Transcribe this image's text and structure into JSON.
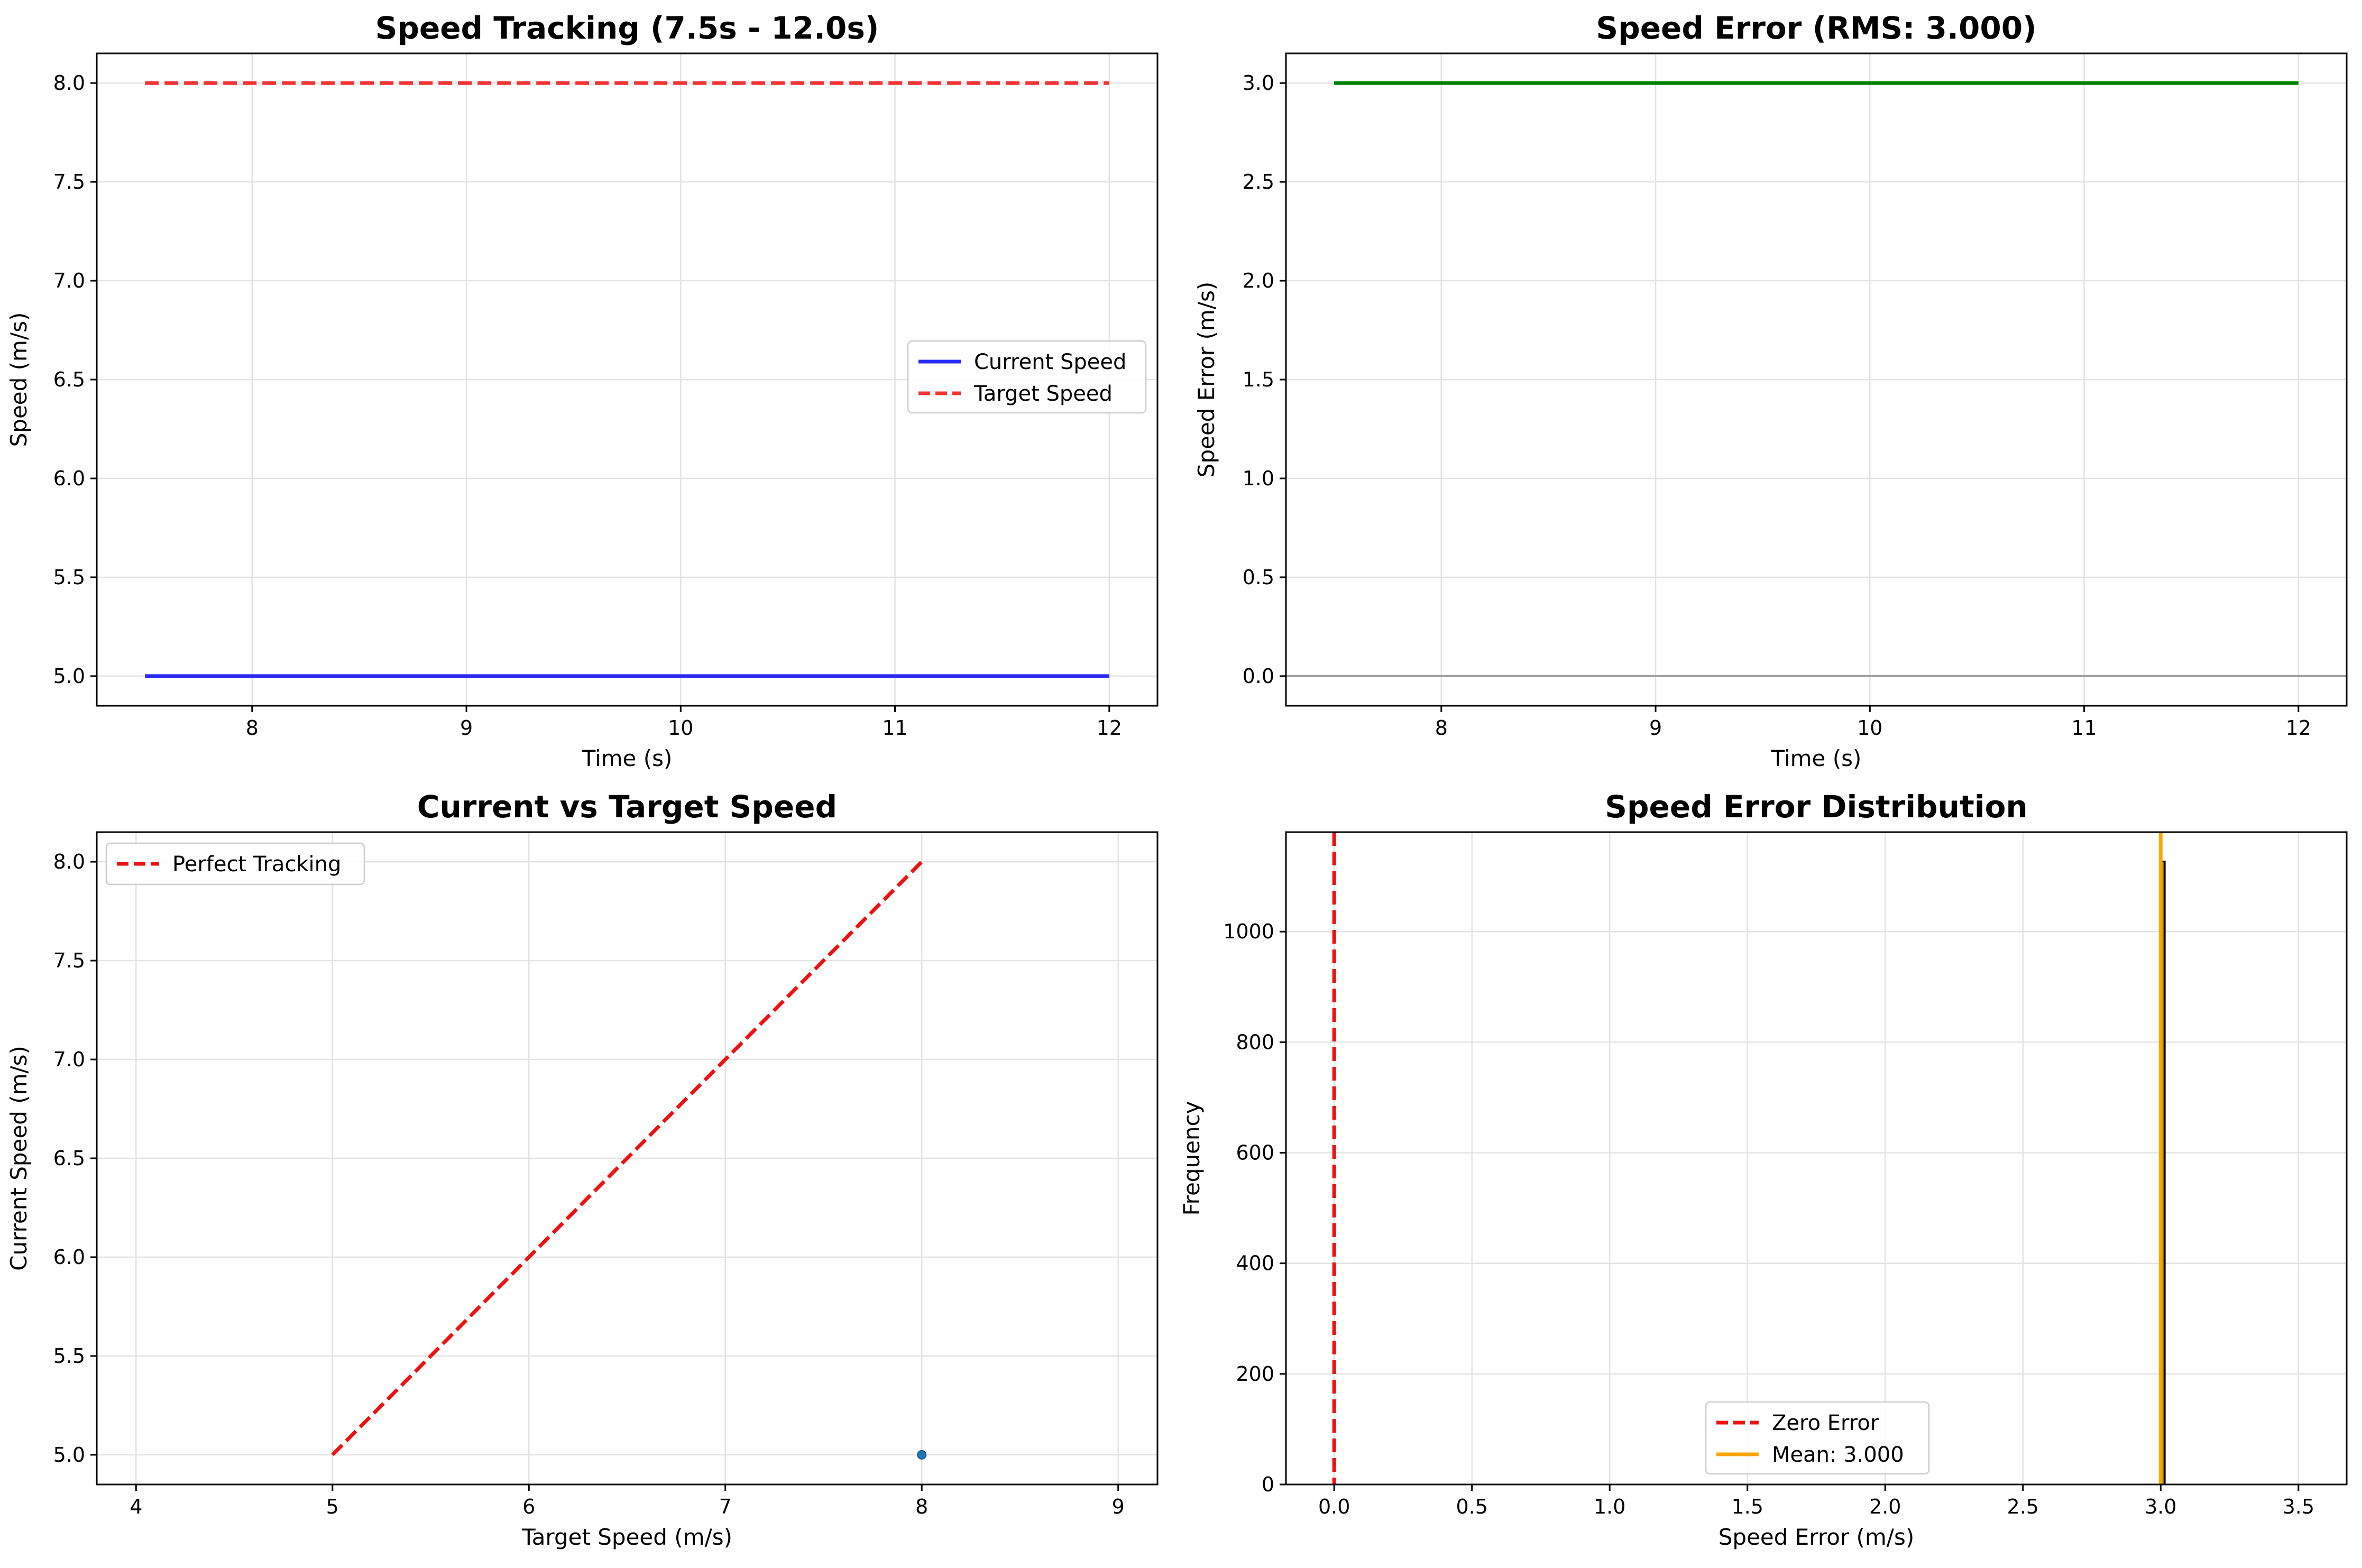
{
  "colors": {
    "current": "#2a2af5",
    "target": "#f53333",
    "error": "#008000",
    "zero_line": "#a0a0a0",
    "perfect": "#ee1111",
    "scatter": "#1f77b4",
    "hist_bar": "#808000",
    "mean_line": "#ffa500",
    "grid": "#e3e3e3"
  },
  "chart_data": [
    {
      "id": "speed-tracking",
      "type": "line",
      "title": "Speed Tracking (7.5s - 12.0s)",
      "xlabel": "Time (s)",
      "ylabel": "Speed (m/s)",
      "xlim": [
        7.275,
        12.225
      ],
      "ylim": [
        4.85,
        8.15
      ],
      "xticks": [
        8,
        9,
        10,
        11,
        12
      ],
      "xtick_labels": [
        "8",
        "9",
        "10",
        "11",
        "12"
      ],
      "yticks": [
        5.0,
        5.5,
        6.0,
        6.5,
        7.0,
        7.5,
        8.0
      ],
      "ytick_labels": [
        "5.0",
        "5.5",
        "6.0",
        "6.5",
        "7.0",
        "7.5",
        "8.0"
      ],
      "grid": true,
      "legend": "center-right",
      "series": [
        {
          "name": "Current Speed",
          "x": [
            7.5,
            12.0
          ],
          "y": [
            5.0,
            5.0
          ],
          "style": "solid",
          "color_key": "current"
        },
        {
          "name": "Target Speed",
          "x": [
            7.5,
            12.0
          ],
          "y": [
            8.0,
            8.0
          ],
          "style": "dashed",
          "color_key": "target"
        }
      ]
    },
    {
      "id": "speed-error",
      "type": "line",
      "title": "Speed Error (RMS: 3.000)",
      "xlabel": "Time (s)",
      "ylabel": "Speed Error (m/s)",
      "xlim": [
        7.275,
        12.225
      ],
      "ylim": [
        -0.15,
        3.15
      ],
      "xticks": [
        8,
        9,
        10,
        11,
        12
      ],
      "xtick_labels": [
        "8",
        "9",
        "10",
        "11",
        "12"
      ],
      "yticks": [
        0.0,
        0.5,
        1.0,
        1.5,
        2.0,
        2.5,
        3.0
      ],
      "ytick_labels": [
        "0.0",
        "0.5",
        "1.0",
        "1.5",
        "2.0",
        "2.5",
        "3.0"
      ],
      "grid": true,
      "hline": {
        "y": 0.0,
        "color_key": "zero_line"
      },
      "series": [
        {
          "x": [
            7.5,
            12.0
          ],
          "y": [
            3.0,
            3.0
          ],
          "style": "solid",
          "color_key": "error"
        }
      ]
    },
    {
      "id": "current-vs-target",
      "type": "scatter",
      "title": "Current vs Target Speed",
      "xlabel": "Target Speed (m/s)",
      "ylabel": "Current Speed (m/s)",
      "xlim": [
        3.8,
        9.2
      ],
      "ylim": [
        4.85,
        8.15
      ],
      "xticks": [
        4,
        5,
        6,
        7,
        8,
        9
      ],
      "xtick_labels": [
        "4",
        "5",
        "6",
        "7",
        "8",
        "9"
      ],
      "yticks": [
        5.0,
        5.5,
        6.0,
        6.5,
        7.0,
        7.5,
        8.0
      ],
      "ytick_labels": [
        "5.0",
        "5.5",
        "6.0",
        "6.5",
        "7.0",
        "7.5",
        "8.0"
      ],
      "grid": true,
      "legend": "top-left",
      "points": [
        {
          "x": 8.0,
          "y": 5.0
        }
      ],
      "series": [
        {
          "name": "Perfect Tracking",
          "x": [
            5.0,
            8.0
          ],
          "y": [
            5.0,
            8.0
          ],
          "style": "dashed",
          "color_key": "perfect"
        }
      ]
    },
    {
      "id": "error-distribution",
      "type": "bar",
      "title": "Speed Error Distribution",
      "xlabel": "Speed Error (m/s)",
      "ylabel": "Frequency",
      "xlim": [
        -0.175,
        3.675
      ],
      "ylim": [
        0,
        1180
      ],
      "xticks": [
        0.0,
        0.5,
        1.0,
        1.5,
        2.0,
        2.5,
        3.0,
        3.5
      ],
      "xtick_labels": [
        "0.0",
        "0.5",
        "1.0",
        "1.5",
        "2.0",
        "2.5",
        "3.0",
        "3.5"
      ],
      "yticks": [
        0,
        200,
        400,
        600,
        800,
        1000
      ],
      "ytick_labels": [
        "0",
        "200",
        "400",
        "600",
        "800",
        "1000"
      ],
      "grid": true,
      "legend": "bottom-center",
      "bins": [
        {
          "x0": 3.0,
          "x1": 3.015,
          "value": 1127
        }
      ],
      "vlines": [
        {
          "name": "Zero Error",
          "x": 0.0,
          "style": "dashed",
          "color_key": "perfect"
        },
        {
          "name": "Mean: 3.000",
          "x": 3.0,
          "style": "solid",
          "color_key": "mean_line"
        }
      ]
    }
  ]
}
